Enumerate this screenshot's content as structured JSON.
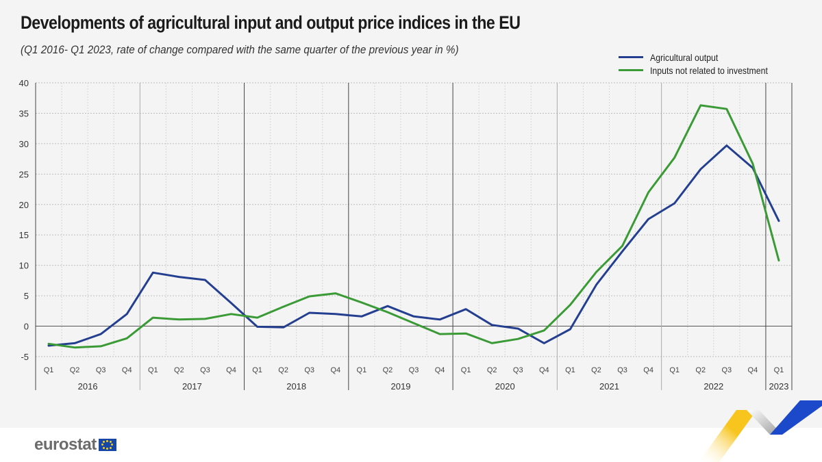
{
  "header": {
    "title": "Developments of agricultural input and output price indices in the EU",
    "subtitle": "(Q1 2016- Q1 2023, rate of change compared with the same quarter of the previous year in %)"
  },
  "branding": {
    "logo_text": "eurostat",
    "colors": {
      "yellow": "#f7c51e",
      "blue": "#1c49c9",
      "grey": "#b5b5b5"
    }
  },
  "chart_data": {
    "type": "line",
    "title": "Developments of agricultural input and output price indices in the EU",
    "subtitle": "(Q1 2016- Q1 2023, rate of change compared with the same quarter of the previous year in %)",
    "xlabel": "",
    "ylabel": "",
    "ylim": [
      -5,
      40
    ],
    "yticks": [
      40,
      35,
      30,
      25,
      20,
      15,
      10,
      5,
      0,
      -5
    ],
    "grid": true,
    "legend_position": "top-right",
    "quarters": [
      "Q1",
      "Q2",
      "Q3",
      "Q4",
      "Q1",
      "Q2",
      "Q3",
      "Q4",
      "Q1",
      "Q2",
      "Q3",
      "Q4",
      "Q1",
      "Q2",
      "Q3",
      "Q4",
      "Q1",
      "Q2",
      "Q3",
      "Q4",
      "Q1",
      "Q2",
      "Q3",
      "Q4",
      "Q1",
      "Q2",
      "Q3",
      "Q4",
      "Q1"
    ],
    "years": [
      {
        "label": "2016",
        "quarters": 4
      },
      {
        "label": "2017",
        "quarters": 4
      },
      {
        "label": "2018",
        "quarters": 4
      },
      {
        "label": "2019",
        "quarters": 4
      },
      {
        "label": "2020",
        "quarters": 4
      },
      {
        "label": "2021",
        "quarters": 4
      },
      {
        "label": "2022",
        "quarters": 4
      },
      {
        "label": "2023",
        "quarters": 1
      }
    ],
    "series": [
      {
        "name": "Agricultural output",
        "color": "#243f8f",
        "values": [
          -3.2,
          -2.8,
          -1.3,
          2.0,
          8.8,
          8.1,
          7.6,
          3.8,
          -0.1,
          -0.2,
          2.2,
          2.0,
          1.6,
          3.3,
          1.6,
          1.1,
          2.8,
          0.2,
          -0.4,
          -2.8,
          -0.5,
          6.8,
          12.3,
          17.6,
          20.2,
          25.8,
          29.7,
          26.0,
          17.3
        ]
      },
      {
        "name": "Inputs not related to investment",
        "color": "#3a9a35",
        "values": [
          -2.9,
          -3.5,
          -3.3,
          -2.0,
          1.4,
          1.1,
          1.2,
          2.0,
          1.4,
          3.2,
          4.9,
          5.4,
          3.9,
          2.3,
          0.5,
          -1.3,
          -1.2,
          -2.8,
          -2.1,
          -0.7,
          3.5,
          8.9,
          13.2,
          22.0,
          27.7,
          36.3,
          35.7,
          26.7,
          10.8
        ]
      }
    ]
  }
}
